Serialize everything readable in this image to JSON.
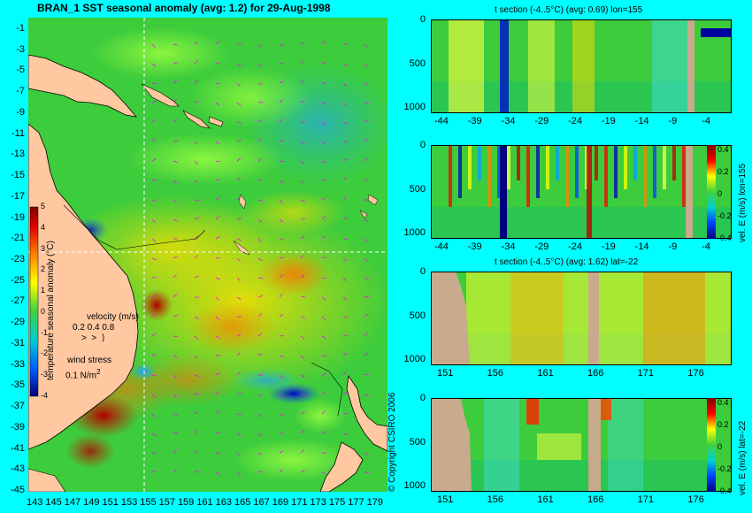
{
  "map": {
    "title": "BRAN_1  SST seasonal anomaly (avg: 1.2) for 29-Aug-1998",
    "lat_ticks": [
      "-1",
      "-3",
      "-5",
      "-7",
      "-9",
      "-11",
      "-13",
      "-15",
      "-17",
      "-19",
      "-21",
      "-23",
      "-25",
      "-27",
      "-29",
      "-31",
      "-33",
      "-35",
      "-37",
      "-39",
      "-41",
      "-43",
      "-45"
    ],
    "lon_ticks": [
      "143",
      "145",
      "147",
      "149",
      "151",
      "153",
      "155",
      "157",
      "159",
      "161",
      "163",
      "165",
      "167",
      "169",
      "171",
      "173",
      "175",
      "177",
      "179"
    ],
    "colorbar": {
      "label": "temperature seasonal anomaly (°C)",
      "ticks": [
        "5",
        "4",
        "3",
        "2",
        "1",
        "0",
        "-1",
        "-2",
        "-3",
        "-4"
      ]
    },
    "legend": {
      "velocity_label": "velocity (m/s)",
      "velocity_scale": "0.2 0.4 0.8",
      "wind_label": "wind stress",
      "wind_scale": "0.1 N/m",
      "wind_exp": "2"
    },
    "copyright": "© Copyright CSIRO 2006",
    "crosshair": {
      "lon": 155,
      "lat": -22
    }
  },
  "sections": [
    {
      "title": "t section (-4..5°C) (avg: 0.69) lon=155",
      "x_ticks": [
        "-44",
        "-39",
        "-34",
        "-29",
        "-24",
        "-19",
        "-14",
        "-9",
        "-4"
      ],
      "y_ticks": [
        "0",
        "500",
        "1000"
      ]
    },
    {
      "title": "",
      "x_ticks": [
        "-44",
        "-39",
        "-34",
        "-29",
        "-24",
        "-19",
        "-14",
        "-9",
        "-4"
      ],
      "y_ticks": [
        "0",
        "500",
        "1000"
      ],
      "colorbar_label": "vel. E (m/s) lon=155",
      "colorbar_ticks": [
        "0.4",
        "0.2",
        "0",
        "-0.2",
        "-0.4"
      ]
    },
    {
      "title": "t section (-4..5°C) (avg: 1.62) lat=-22",
      "x_ticks": [
        "151",
        "156",
        "161",
        "166",
        "171",
        "176"
      ],
      "y_ticks": [
        "0",
        "500",
        "1000"
      ]
    },
    {
      "title": "",
      "x_ticks": [
        "151",
        "156",
        "161",
        "166",
        "171",
        "176"
      ],
      "y_ticks": [
        "0",
        "500",
        "1000"
      ],
      "colorbar_label": "vel. E (m/s) lat=-22",
      "colorbar_ticks": [
        "0.4",
        "0.2",
        "0",
        "-0.2",
        "-0.4"
      ]
    }
  ],
  "colors": {
    "background": "#00ffff",
    "land": "#ffc8a0",
    "section_land": "#c8aa8c",
    "ocean": "#40d040",
    "crosshair": "#ffffff",
    "vectors": "#ff00ff"
  }
}
